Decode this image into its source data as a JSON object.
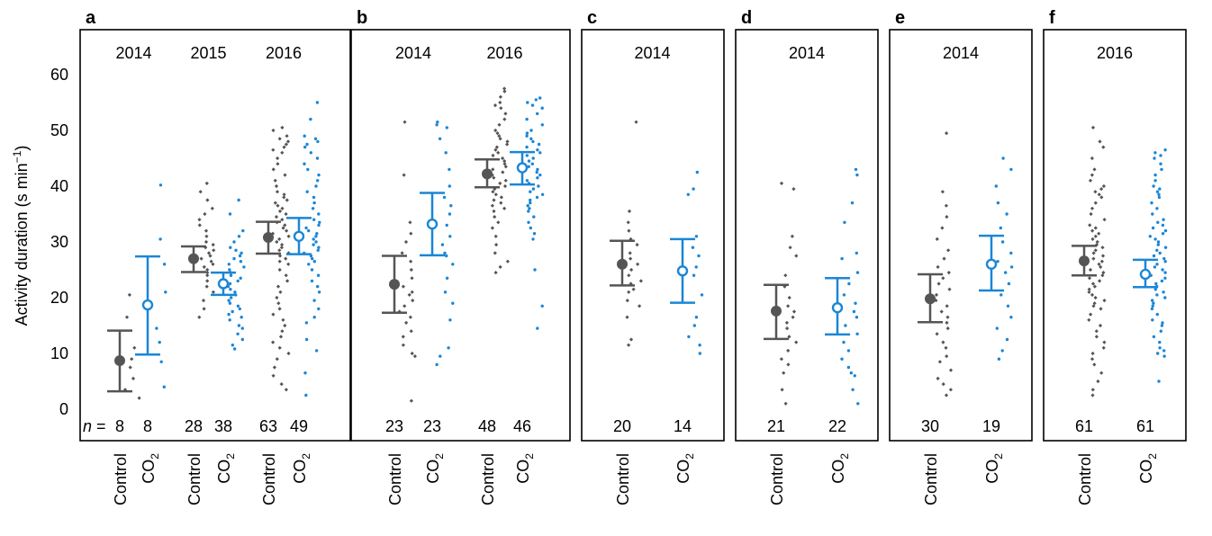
{
  "figure": {
    "ylabel": "Activity duration (s min",
    "ylabel_sup": "−1",
    "ylabel_close": ")",
    "n_prefix": "n =",
    "yticks": [
      "0",
      "10",
      "20",
      "30",
      "40",
      "50",
      "60"
    ],
    "colors": {
      "control": "#555555",
      "co2": "#1a86d6"
    }
  },
  "chart_data": [
    {
      "panel": "a",
      "type": "scatter",
      "ylim": [
        0,
        62
      ],
      "grid": false,
      "ylabel": "Activity duration (s min−1)",
      "years": [
        "2014",
        "2015",
        "2016"
      ],
      "groups": [
        {
          "year": "2014",
          "treatment": "Control",
          "label": "Control",
          "n": "8",
          "mean": 8.7,
          "lo": 3.2,
          "hi": 14.1,
          "points": [
            2.0,
            3.5,
            5.5,
            7.5,
            9.0,
            11.0,
            16.5,
            20.5
          ]
        },
        {
          "year": "2014",
          "treatment": "CO2",
          "label": "CO",
          "n": "8",
          "mean": 18.7,
          "lo": 9.8,
          "hi": 27.4,
          "points": [
            4.0,
            8.5,
            12.0,
            14.5,
            21.0,
            26.0,
            30.5,
            40.2
          ]
        },
        {
          "year": "2015",
          "treatment": "Control",
          "label": "Control",
          "n": "28",
          "mean": 27.0,
          "lo": 24.6,
          "hi": 29.2,
          "points": [
            16.5,
            18.0,
            19.5,
            21.0,
            22.0,
            23.0,
            24.0,
            24.5,
            25.0,
            25.5,
            26.0,
            26.5,
            27.0,
            27.5,
            28.0,
            28.5,
            29.0,
            29.5,
            30.0,
            31.0,
            32.0,
            33.0,
            34.0,
            35.0,
            36.0,
            37.5,
            39.0,
            40.5
          ]
        },
        {
          "year": "2015",
          "treatment": "CO2",
          "label": "CO",
          "n": "38",
          "mean": 22.5,
          "lo": 20.5,
          "hi": 24.5,
          "points": [
            10.8,
            11.5,
            12.5,
            13.5,
            14.5,
            15.0,
            16.0,
            16.5,
            17.0,
            17.5,
            18.0,
            18.5,
            19.0,
            19.5,
            20.0,
            20.5,
            21.0,
            21.5,
            22.0,
            22.5,
            23.0,
            23.5,
            24.0,
            24.5,
            25.0,
            25.5,
            26.0,
            26.5,
            27.0,
            27.5,
            28.0,
            28.5,
            29.0,
            30.0,
            31.0,
            32.0,
            35.0,
            37.5
          ]
        },
        {
          "year": "2016",
          "treatment": "Control",
          "label": "Control",
          "n": "63",
          "mean": 30.8,
          "lo": 27.9,
          "hi": 33.6,
          "points": [
            3.5,
            4.5,
            6.0,
            7.5,
            9.0,
            10.0,
            11.0,
            12.0,
            13.0,
            14.0,
            15.0,
            16.0,
            17.0,
            18.0,
            19.0,
            20.0,
            21.0,
            22.0,
            23.0,
            24.0,
            25.0,
            26.0,
            26.5,
            27.0,
            27.5,
            28.0,
            28.5,
            29.0,
            29.5,
            30.0,
            30.5,
            31.0,
            31.5,
            32.0,
            32.5,
            33.0,
            33.5,
            34.0,
            34.5,
            35.0,
            35.5,
            36.0,
            36.5,
            37.0,
            37.5,
            38.0,
            38.5,
            39.0,
            40.0,
            41.0,
            42.0,
            43.0,
            44.0,
            45.0,
            46.0,
            46.5,
            47.0,
            47.5,
            48.0,
            48.5,
            49.0,
            50.0,
            50.5
          ]
        },
        {
          "year": "2016",
          "treatment": "CO2",
          "label": "CO",
          "n": "49",
          "mean": 31.0,
          "lo": 27.8,
          "hi": 34.3,
          "points": [
            2.5,
            6.5,
            10.5,
            12.5,
            15.5,
            16.5,
            18.0,
            19.5,
            21.0,
            22.0,
            23.0,
            24.0,
            25.0,
            26.0,
            26.5,
            27.0,
            27.5,
            28.0,
            28.5,
            29.0,
            29.5,
            30.0,
            30.5,
            31.0,
            31.5,
            32.0,
            32.5,
            33.0,
            33.5,
            34.0,
            35.0,
            36.0,
            37.0,
            38.0,
            39.0,
            40.0,
            41.0,
            42.0,
            43.0,
            44.0,
            45.0,
            46.0,
            47.0,
            47.5,
            48.0,
            48.5,
            49.0,
            52.0,
            55.0
          ]
        }
      ]
    },
    {
      "panel": "b",
      "type": "scatter",
      "ylim": [
        0,
        62
      ],
      "grid": false,
      "years": [
        "2014",
        "2016"
      ],
      "groups": [
        {
          "year": "2014",
          "treatment": "Control",
          "label": "Control",
          "n": "23",
          "mean": 22.4,
          "lo": 17.3,
          "hi": 27.5,
          "points": [
            1.5,
            9.5,
            10.0,
            11.5,
            13.0,
            14.0,
            15.5,
            16.5,
            17.5,
            18.5,
            19.5,
            20.5,
            21.0,
            22.0,
            23.5,
            25.0,
            26.5,
            28.0,
            30.0,
            31.5,
            33.5,
            42.0,
            51.5
          ]
        },
        {
          "year": "2014",
          "treatment": "CO2",
          "label": "CO",
          "n": "23",
          "mean": 33.2,
          "lo": 27.6,
          "hi": 38.8,
          "points": [
            8.0,
            9.5,
            11.0,
            16.0,
            19.0,
            21.0,
            23.5,
            26.0,
            27.5,
            28.0,
            29.5,
            31.0,
            33.0,
            35.0,
            36.5,
            38.0,
            40.0,
            43.0,
            46.0,
            48.5,
            50.5,
            51.0,
            51.5
          ]
        },
        {
          "year": "2016",
          "treatment": "Control",
          "label": "Control",
          "n": "48",
          "mean": 42.2,
          "lo": 39.8,
          "hi": 44.8,
          "points": [
            24.5,
            25.5,
            26.5,
            28.0,
            29.5,
            31.0,
            32.5,
            33.5,
            34.5,
            35.5,
            36.0,
            36.5,
            37.0,
            37.5,
            38.0,
            38.5,
            39.0,
            39.5,
            40.0,
            40.5,
            41.0,
            41.5,
            42.0,
            42.5,
            43.0,
            43.5,
            44.0,
            44.5,
            45.0,
            45.5,
            46.0,
            46.5,
            47.0,
            47.5,
            48.0,
            48.5,
            49.0,
            49.5,
            50.0,
            51.0,
            52.0,
            53.0,
            54.0,
            54.5,
            55.0,
            56.0,
            57.0,
            57.5
          ]
        },
        {
          "year": "2016",
          "treatment": "CO2",
          "label": "CO",
          "n": "46",
          "mean": 43.3,
          "lo": 40.3,
          "hi": 46.1,
          "points": [
            14.5,
            18.5,
            25.0,
            30.5,
            31.5,
            32.5,
            33.5,
            34.5,
            35.5,
            36.0,
            36.5,
            37.0,
            37.5,
            38.0,
            38.5,
            39.0,
            39.5,
            40.0,
            40.5,
            41.0,
            41.5,
            42.0,
            42.5,
            43.0,
            43.5,
            44.0,
            44.5,
            45.0,
            45.5,
            46.0,
            46.5,
            47.0,
            47.5,
            48.0,
            48.5,
            49.0,
            49.5,
            50.0,
            51.0,
            52.0,
            53.0,
            54.0,
            54.5,
            55.0,
            55.5,
            55.8
          ]
        }
      ]
    },
    {
      "panel": "c",
      "type": "scatter",
      "ylim": [
        0,
        62
      ],
      "grid": false,
      "years": [
        "2014"
      ],
      "groups": [
        {
          "year": "2014",
          "treatment": "Control",
          "label": "Control",
          "n": "20",
          "mean": 26.0,
          "lo": 22.2,
          "hi": 30.2,
          "points": [
            11.5,
            12.5,
            16.5,
            18.5,
            19.5,
            21.0,
            21.5,
            22.5,
            23.0,
            24.0,
            25.0,
            26.0,
            27.0,
            28.0,
            29.5,
            30.5,
            32.0,
            33.5,
            35.5,
            51.5
          ]
        },
        {
          "year": "2014",
          "treatment": "CO2",
          "label": "CO",
          "n": "14",
          "mean": 24.8,
          "lo": 19.1,
          "hi": 30.5,
          "points": [
            10.0,
            11.5,
            13.0,
            15.0,
            16.5,
            20.5,
            24.0,
            25.5,
            27.5,
            29.0,
            31.0,
            38.5,
            39.5,
            42.5
          ]
        }
      ]
    },
    {
      "panel": "d",
      "type": "scatter",
      "ylim": [
        0,
        62
      ],
      "grid": false,
      "years": [
        "2014"
      ],
      "groups": [
        {
          "year": "2014",
          "treatment": "Control",
          "label": "Control",
          "n": "21",
          "mean": 17.6,
          "lo": 12.6,
          "hi": 22.3,
          "points": [
            1.0,
            3.5,
            6.5,
            8.0,
            9.0,
            10.5,
            12.0,
            13.0,
            14.5,
            15.5,
            16.5,
            17.5,
            18.5,
            20.0,
            22.0,
            24.0,
            27.5,
            29.0,
            31.0,
            39.5,
            40.5
          ]
        },
        {
          "year": "2014",
          "treatment": "CO2",
          "label": "CO",
          "n": "22",
          "mean": 18.2,
          "lo": 13.4,
          "hi": 23.5,
          "points": [
            1.0,
            3.5,
            6.0,
            6.5,
            7.5,
            9.0,
            10.5,
            12.0,
            13.5,
            15.0,
            16.5,
            17.5,
            19.0,
            20.5,
            22.5,
            24.5,
            27.0,
            28.0,
            33.5,
            37.0,
            42.0,
            43.0
          ]
        }
      ]
    },
    {
      "panel": "e",
      "type": "scatter",
      "ylim": [
        0,
        62
      ],
      "grid": false,
      "years": [
        "2014"
      ],
      "groups": [
        {
          "year": "2014",
          "treatment": "Control",
          "label": "Control",
          "n": "30",
          "mean": 19.8,
          "lo": 15.6,
          "hi": 24.2,
          "points": [
            2.5,
            3.5,
            4.5,
            5.5,
            7.0,
            8.5,
            9.5,
            11.0,
            12.0,
            13.5,
            14.5,
            15.5,
            16.5,
            17.5,
            18.5,
            19.5,
            20.5,
            21.5,
            22.5,
            23.5,
            24.5,
            25.5,
            27.0,
            28.5,
            30.5,
            32.5,
            34.5,
            36.5,
            39.0,
            49.5
          ]
        },
        {
          "year": "2014",
          "treatment": "CO2",
          "label": "CO",
          "n": "19",
          "mean": 26.0,
          "lo": 21.3,
          "hi": 31.1,
          "points": [
            9.0,
            10.5,
            12.5,
            14.5,
            16.5,
            18.5,
            20.5,
            22.5,
            24.5,
            25.5,
            26.5,
            28.0,
            30.0,
            32.5,
            35.0,
            37.0,
            40.0,
            43.0,
            45.0
          ]
        }
      ]
    },
    {
      "panel": "f",
      "type": "scatter",
      "ylim": [
        0,
        62
      ],
      "grid": false,
      "years": [
        "2016"
      ],
      "groups": [
        {
          "year": "2016",
          "treatment": "Control",
          "label": "Control",
          "n": "61",
          "mean": 26.6,
          "lo": 24.0,
          "hi": 29.3,
          "points": [
            2.5,
            3.5,
            5.0,
            6.5,
            8.0,
            9.0,
            10.0,
            11.0,
            12.0,
            13.0,
            14.0,
            15.0,
            16.0,
            17.0,
            18.0,
            18.5,
            19.0,
            19.5,
            20.0,
            20.5,
            21.0,
            21.5,
            22.0,
            22.5,
            23.0,
            23.5,
            24.0,
            24.5,
            25.0,
            25.5,
            26.0,
            26.5,
            27.0,
            27.5,
            28.0,
            28.5,
            29.0,
            29.5,
            30.0,
            30.5,
            31.0,
            31.5,
            32.0,
            32.5,
            33.0,
            34.0,
            35.0,
            36.0,
            37.0,
            38.0,
            38.5,
            39.0,
            39.5,
            40.0,
            41.0,
            42.0,
            43.0,
            45.0,
            47.0,
            48.0,
            50.5
          ]
        },
        {
          "year": "2016",
          "treatment": "CO2",
          "label": "CO",
          "n": "61",
          "mean": 24.2,
          "lo": 21.9,
          "hi": 26.8,
          "points": [
            5.0,
            9.5,
            10.0,
            10.5,
            11.0,
            12.0,
            13.0,
            14.0,
            15.0,
            15.5,
            16.0,
            17.0,
            18.0,
            18.5,
            19.0,
            19.5,
            20.0,
            20.5,
            21.0,
            21.5,
            22.0,
            22.5,
            23.0,
            23.5,
            24.0,
            24.5,
            25.0,
            25.5,
            26.0,
            26.5,
            27.0,
            27.5,
            28.0,
            28.5,
            29.0,
            29.5,
            30.0,
            30.5,
            31.0,
            31.5,
            32.0,
            32.5,
            33.0,
            33.5,
            34.0,
            35.0,
            36.0,
            37.0,
            38.0,
            38.5,
            39.0,
            39.5,
            40.0,
            41.0,
            42.0,
            43.0,
            44.0,
            45.0,
            45.5,
            46.0,
            46.5
          ]
        }
      ]
    }
  ]
}
